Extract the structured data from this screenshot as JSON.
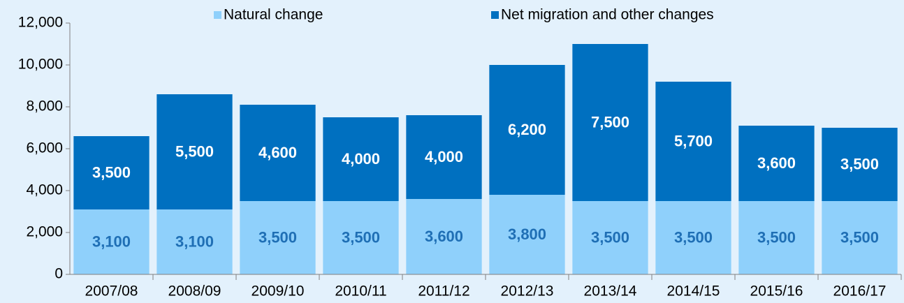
{
  "chart_data": {
    "type": "stacked_bar",
    "categories": [
      "2007/08",
      "2008/09",
      "2009/10",
      "2010/11",
      "2011/12",
      "2012/13",
      "2013/14",
      "2014/15",
      "2015/16",
      "2016/17"
    ],
    "series": [
      {
        "name": "Natural change",
        "color": "#8fd0fb",
        "label_color": "#1f6fb5",
        "values": [
          3100,
          3100,
          3500,
          3500,
          3600,
          3800,
          3500,
          3500,
          3500,
          3500
        ],
        "value_labels": [
          "3,100",
          "3,100",
          "3,500",
          "3,500",
          "3,600",
          "3,800",
          "3,500",
          "3,500",
          "3,500",
          "3,500"
        ]
      },
      {
        "name": "Net migration and other changes",
        "color": "#0070c0",
        "label_color": "#ffffff",
        "values": [
          3500,
          5500,
          4600,
          4000,
          4000,
          6200,
          7500,
          5700,
          3600,
          3500
        ],
        "value_labels": [
          "3,500",
          "5,500",
          "4,600",
          "4,000",
          "4,000",
          "6,200",
          "7,500",
          "5,700",
          "3,600",
          "3,500"
        ]
      }
    ],
    "ylim": [
      0,
      12000
    ],
    "yticks": [
      0,
      {
        "value": 2000,
        "label": "2,000"
      },
      {
        "value": 4000,
        "label": "4,000"
      },
      {
        "value": 6000,
        "label": "6,000"
      },
      {
        "value": 8000,
        "label": "8,000"
      },
      {
        "value": 10000,
        "label": "10,000"
      },
      {
        "value": 12000,
        "label": "12,000"
      }
    ],
    "legend": "top"
  }
}
